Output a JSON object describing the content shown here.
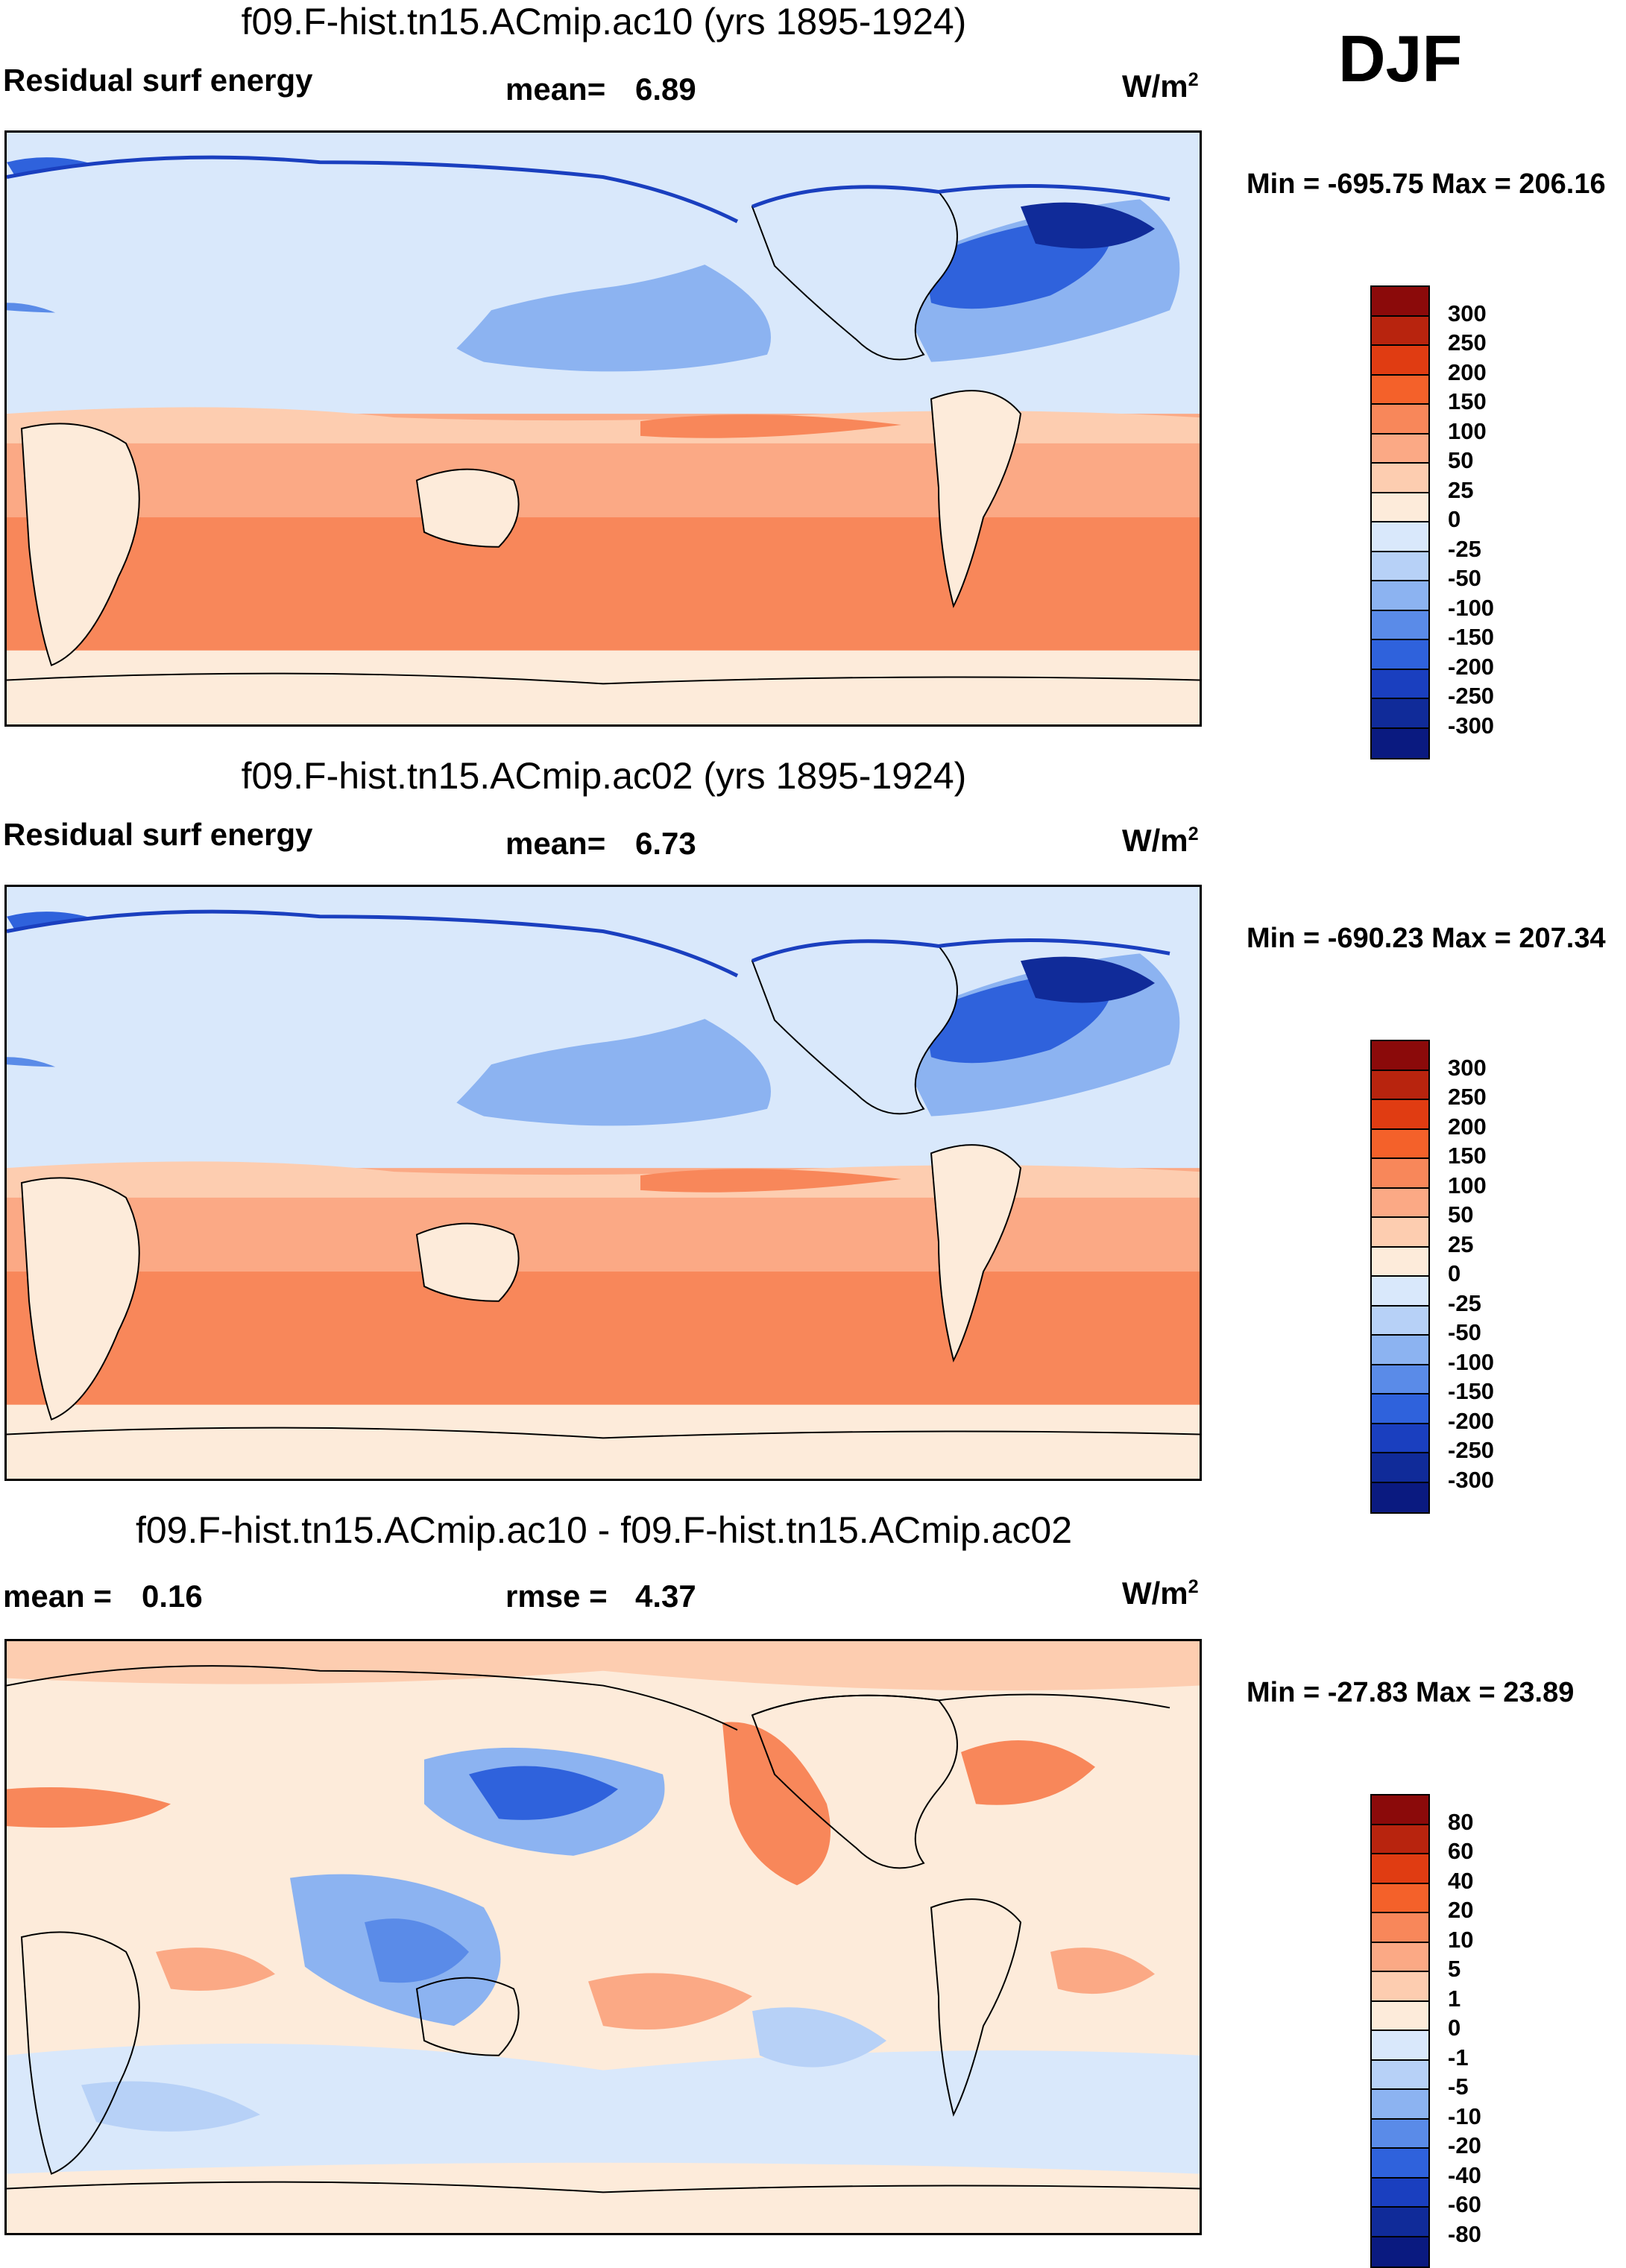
{
  "season": "DJF",
  "units_base": "W/m",
  "units_exp": "2",
  "panels": [
    {
      "title": "f09.F-hist.tn15.ACmip.ac10 (yrs 1895-1924)",
      "variable": "Residual surf energy",
      "mean_label": "mean=",
      "mean_value": "6.89",
      "minmax": "Min = -695.75 Max = 206.16"
    },
    {
      "title": "f09.F-hist.tn15.ACmip.ac02 (yrs 1895-1924)",
      "variable": "Residual surf energy",
      "mean_label": "mean=",
      "mean_value": "6.73",
      "minmax": "Min = -690.23 Max = 207.34"
    },
    {
      "title": "f09.F-hist.tn15.ACmip.ac10 - f09.F-hist.tn15.ACmip.ac02",
      "mean_label": "mean =",
      "mean_value": "0.16",
      "rmse_label": "rmse =",
      "rmse_value": "4.37",
      "minmax": "Min = -27.83 Max =  23.89"
    }
  ],
  "colorbars": {
    "absolute": {
      "labels": [
        "300",
        "250",
        "200",
        "150",
        "100",
        "50",
        "25",
        "0",
        "-25",
        "-50",
        "-100",
        "-150",
        "-200",
        "-250",
        "-300"
      ],
      "colors": [
        "#8b0a0a",
        "#b8240e",
        "#e03c12",
        "#f4612a",
        "#f8875a",
        "#fba985",
        "#fdcdb0",
        "#fdebda",
        "#d9e8fb",
        "#b7d1f7",
        "#8cb3f1",
        "#5a8be8",
        "#2f62dc",
        "#1a3fbf",
        "#102b99",
        "#0a1a80"
      ]
    },
    "difference": {
      "labels": [
        "80",
        "60",
        "40",
        "20",
        "10",
        "5",
        "1",
        "0",
        "-1",
        "-5",
        "-10",
        "-20",
        "-40",
        "-60",
        "-80"
      ],
      "colors": [
        "#8b0a0a",
        "#b8240e",
        "#e03c12",
        "#f4612a",
        "#f8875a",
        "#fba985",
        "#fdcdb0",
        "#fdebda",
        "#d9e8fb",
        "#b7d1f7",
        "#8cb3f1",
        "#5a8be8",
        "#2f62dc",
        "#1a3fbf",
        "#102b99",
        "#0a1a80"
      ]
    }
  }
}
